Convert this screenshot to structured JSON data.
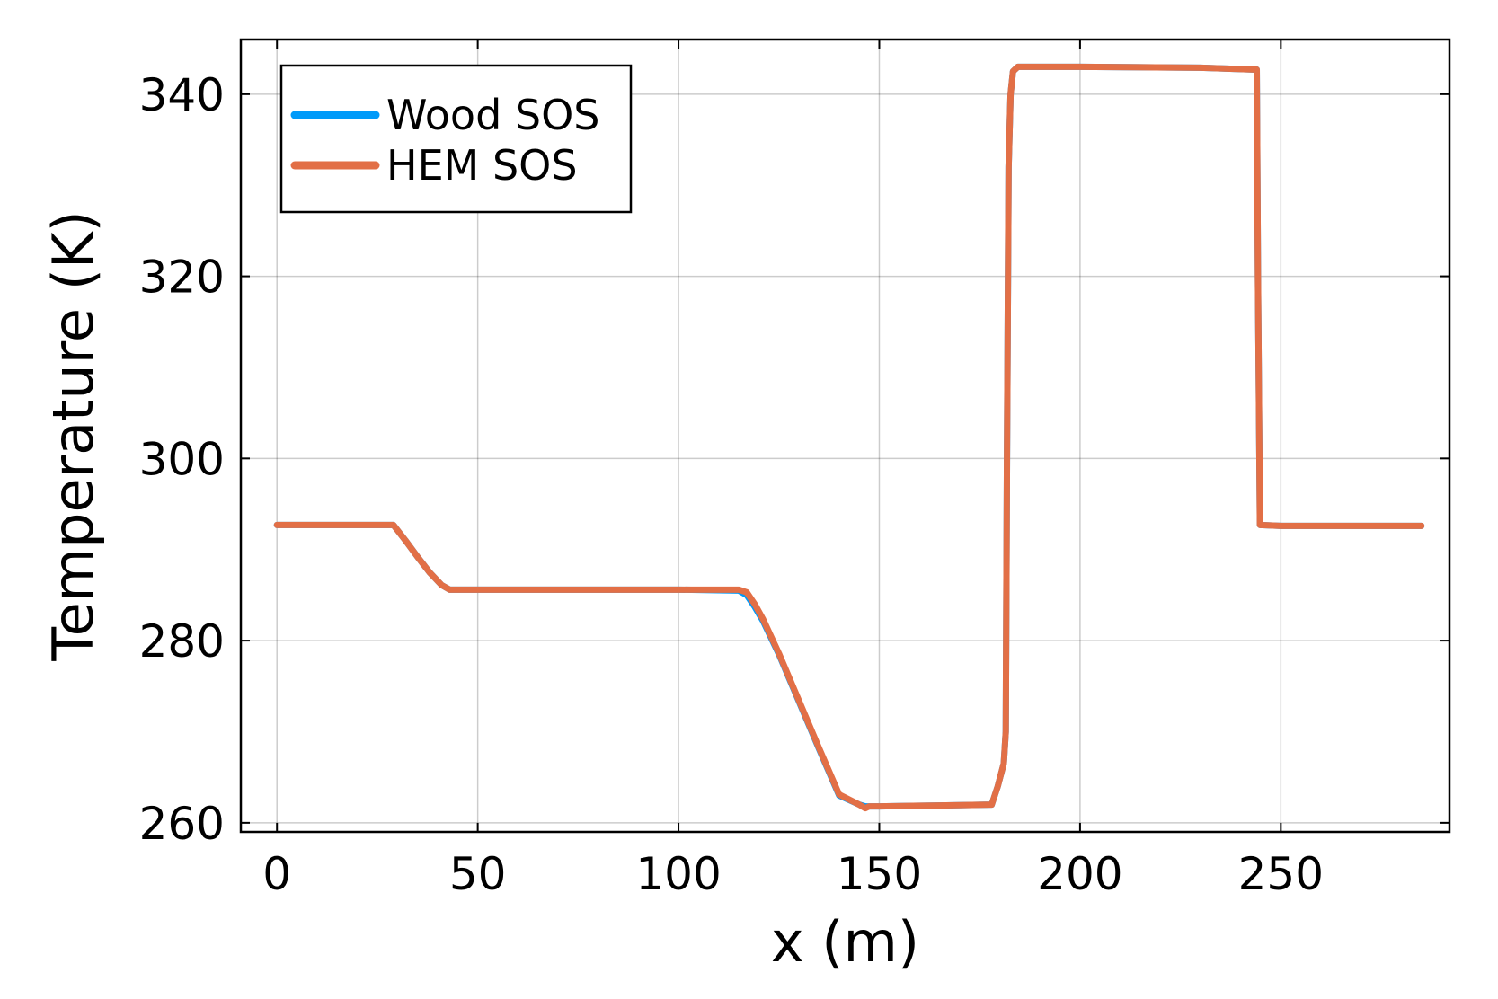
{
  "chart_data": {
    "type": "line",
    "xlabel": "x (m)",
    "ylabel": "Temperature (K)",
    "xlim": [
      -9,
      292
    ],
    "ylim": [
      259,
      346
    ],
    "xticks": [
      0,
      50,
      100,
      150,
      200,
      250
    ],
    "yticks": [
      260,
      280,
      300,
      320,
      340
    ],
    "x_tick_labels": [
      "0",
      "50",
      "100",
      "150",
      "200",
      "250"
    ],
    "y_tick_labels": [
      "260",
      "280",
      "300",
      "320",
      "340"
    ],
    "grid": true,
    "legend_position": "top-left",
    "series": [
      {
        "name": "Wood SOS",
        "color": "#009af9",
        "x": [
          0,
          29,
          32,
          35,
          38,
          41,
          43,
          46,
          50,
          100,
          115,
          117,
          119,
          121,
          125,
          130,
          135,
          140,
          145,
          146.5,
          147.5,
          150,
          165,
          178,
          179.5,
          181,
          181.5,
          181.8,
          182.2,
          182.7,
          183.3,
          184.5,
          200,
          230,
          244,
          244.3,
          244.8,
          250,
          285
        ],
        "values": [
          292.7,
          292.7,
          291.0,
          289.2,
          287.5,
          286.1,
          285.6,
          285.6,
          285.6,
          285.6,
          285.5,
          285.0,
          283.7,
          282.2,
          278.5,
          273.3,
          268.1,
          263.0,
          262.0,
          261.8,
          261.8,
          261.8,
          261.9,
          262.0,
          264.0,
          266.5,
          270.0,
          300.0,
          332.0,
          340.0,
          342.5,
          343.0,
          343.0,
          342.9,
          342.7,
          320.0,
          292.7,
          292.6,
          292.6
        ]
      },
      {
        "name": "HEM SOS",
        "color": "#e26f46",
        "x": [
          0,
          29,
          32,
          35,
          38,
          41,
          43,
          46,
          50,
          100,
          115,
          117,
          119,
          121,
          125,
          130,
          135,
          140,
          145,
          146.5,
          147.5,
          150,
          165,
          178,
          179.5,
          181,
          181.5,
          181.8,
          182.2,
          182.7,
          183.3,
          184.5,
          200,
          230,
          244,
          244.3,
          244.8,
          250,
          285
        ],
        "values": [
          292.7,
          292.7,
          291.0,
          289.2,
          287.5,
          286.1,
          285.6,
          285.6,
          285.6,
          285.6,
          285.6,
          285.3,
          284.0,
          282.4,
          278.6,
          273.4,
          268.2,
          263.1,
          262.0,
          261.6,
          261.8,
          261.8,
          261.9,
          262.0,
          264.0,
          266.5,
          270.0,
          300.0,
          332.0,
          340.0,
          342.5,
          343.0,
          343.0,
          342.9,
          342.7,
          320.0,
          292.7,
          292.6,
          292.6
        ]
      }
    ]
  }
}
